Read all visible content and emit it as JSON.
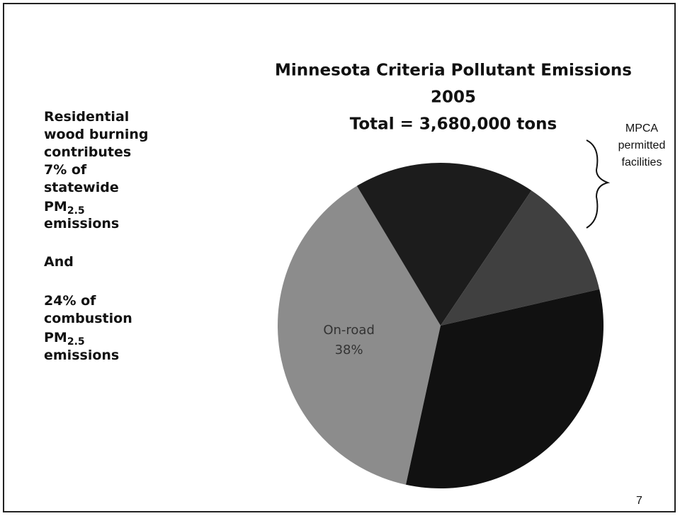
{
  "chart_data": {
    "type": "pie",
    "title": [
      "Minnesota Criteria Pollutant Emissions",
      "2005",
      "Total = 3,680,000 tons"
    ],
    "categories": [
      "On-road",
      null,
      null,
      null
    ],
    "values": [
      38,
      18,
      12,
      32
    ],
    "value_labels": [
      "38%",
      null,
      null,
      null
    ],
    "colors": [
      "#8c8c8c",
      "#1c1c1c",
      "#404040",
      "#111111"
    ],
    "annotation": [
      "MPCA",
      "permitted",
      "facilities"
    ]
  },
  "side_text": [
    {
      "text": "Residential"
    },
    {
      "text": "wood burning"
    },
    {
      "text": "contributes"
    },
    {
      "text": "7% of"
    },
    {
      "text": "statewide"
    },
    {
      "text": "PM",
      "sub": "2.5"
    },
    {
      "text": "emissions"
    },
    {
      "text": "And"
    },
    {
      "text": "24% of"
    },
    {
      "text": "combustion"
    },
    {
      "text": "PM",
      "sub": "2.5"
    },
    {
      "text": "emissions"
    }
  ],
  "page_number": "7"
}
